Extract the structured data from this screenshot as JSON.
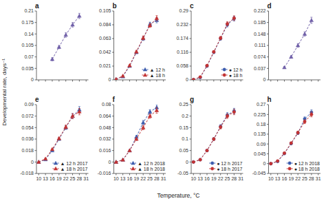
{
  "chart_data": [
    {
      "type": "line",
      "title": "a",
      "x": [
        16,
        19,
        22,
        25,
        28
      ],
      "xlim": [
        9,
        32
      ],
      "xticks": [
        10,
        13,
        16,
        19,
        22,
        25,
        28,
        31
      ],
      "ylim": [
        0,
        0.21
      ],
      "yticks": [
        0,
        0.035,
        0.07,
        0.105,
        0.14,
        0.175,
        0.21
      ],
      "tick_labels": "y",
      "series": [
        {
          "color": "#7060A8",
          "marker": "triangle",
          "line_style": "dashed",
          "values": [
            0.063,
            0.1,
            0.137,
            0.168,
            0.195
          ],
          "yerr": [
            0.005,
            0.005,
            0.007,
            0.007,
            0.008
          ]
        }
      ]
    },
    {
      "type": "line",
      "title": "b",
      "x": [
        10,
        13,
        16,
        19,
        22,
        25,
        28
      ],
      "xlim": [
        9,
        32
      ],
      "xticks": [
        10,
        13,
        16,
        19,
        22,
        25,
        28,
        31
      ],
      "ylim": [
        0,
        0.105
      ],
      "yticks": [
        0,
        0.021,
        0.042,
        0.063,
        0.084,
        0.105
      ],
      "tick_labels": "y",
      "legend": "lower right",
      "series": [
        {
          "name": "▲ 12 h",
          "color": "#3B5BAD",
          "marker": "triangle",
          "line_style": "dashed",
          "values": [
            0.001,
            0.005,
            0.021,
            0.042,
            0.063,
            0.085,
            0.091
          ],
          "yerr": [
            0.0005,
            0.001,
            0.001,
            0.002,
            0.003,
            0.003,
            0.004
          ]
        },
        {
          "name": "▲ 18 h",
          "color": "#C23232",
          "marker": "triangle",
          "line_style": "dashed",
          "values": [
            0.001,
            0.006,
            0.022,
            0.043,
            0.064,
            0.083,
            0.094
          ],
          "yerr": [
            0.0005,
            0.001,
            0.001,
            0.002,
            0.003,
            0.003,
            0.004
          ]
        }
      ]
    },
    {
      "type": "line",
      "title": "c",
      "x": [
        10,
        13,
        16,
        19,
        22,
        25,
        28
      ],
      "xlim": [
        9,
        32
      ],
      "xticks": [
        10,
        13,
        16,
        19,
        22,
        25,
        28,
        31
      ],
      "ylim": [
        0,
        0.29
      ],
      "yticks": [
        0,
        0.058,
        0.116,
        0.174,
        0.232,
        0.29
      ],
      "tick_labels": "y",
      "legend": "lower right",
      "series": [
        {
          "name": "● 12 h",
          "color": "#3B5BAD",
          "marker": "circle",
          "line_style": "dashed",
          "values": [
            0.001,
            0.01,
            0.058,
            0.116,
            0.174,
            0.232,
            0.258
          ],
          "yerr": [
            0.0005,
            0.002,
            0.003,
            0.005,
            0.007,
            0.009,
            0.01
          ]
        },
        {
          "name": "● 18 h",
          "color": "#C23232",
          "marker": "circle",
          "line_style": "dashed",
          "values": [
            0.001,
            0.012,
            0.06,
            0.118,
            0.176,
            0.236,
            0.26
          ],
          "yerr": [
            0.0005,
            0.002,
            0.003,
            0.005,
            0.007,
            0.009,
            0.01
          ]
        }
      ]
    },
    {
      "type": "line",
      "title": "d",
      "x": [
        16,
        19,
        22,
        25,
        28
      ],
      "xlim": [
        9,
        32
      ],
      "xticks": [
        10,
        13,
        16,
        19,
        22,
        25,
        28,
        31
      ],
      "ylim": [
        0,
        0.222
      ],
      "yticks": [
        0,
        0.037,
        0.074,
        0.111,
        0.148,
        0.185,
        0.222
      ],
      "tick_labels": "y",
      "series": [
        {
          "color": "#7060A8",
          "marker": "triangle",
          "line_style": "dashed",
          "values": [
            0.04,
            0.074,
            0.111,
            0.148,
            0.192
          ],
          "yerr": [
            0.003,
            0.004,
            0.006,
            0.007,
            0.01
          ]
        }
      ]
    },
    {
      "type": "line",
      "title": "e",
      "x": [
        10,
        13,
        16,
        19,
        22,
        25,
        28
      ],
      "xlim": [
        9,
        32
      ],
      "xticks": [
        10,
        13,
        16,
        19,
        22,
        25,
        28,
        31
      ],
      "ylim": [
        -0.018,
        0.09
      ],
      "yticks": [
        -0.018,
        0,
        0.018,
        0.036,
        0.054,
        0.072,
        0.09
      ],
      "legend": "lower right",
      "series": [
        {
          "name": "▲ 12 h 2017",
          "color": "#3B5BAD",
          "marker": "triangle",
          "line_style": "dashed",
          "values": [
            0.0,
            0.004,
            0.018,
            0.036,
            0.054,
            0.072,
            0.082
          ],
          "yerr": [
            0.0002,
            0.001,
            0.001,
            0.002,
            0.003,
            0.004,
            0.005
          ]
        },
        {
          "name": "▲ 18 h 2017",
          "color": "#C23232",
          "marker": "triangle",
          "line_style": "dashed",
          "values": [
            0.0,
            0.005,
            0.02,
            0.037,
            0.055,
            0.072,
            0.079
          ],
          "yerr": [
            0.0002,
            0.001,
            0.001,
            0.002,
            0.003,
            0.004,
            0.005
          ]
        }
      ]
    },
    {
      "type": "line",
      "title": "f",
      "x": [
        10,
        13,
        16,
        19,
        22,
        25,
        28
      ],
      "xlim": [
        9,
        32
      ],
      "xticks": [
        10,
        13,
        16,
        19,
        22,
        25,
        28,
        31
      ],
      "ylim": [
        -0.016,
        0.08
      ],
      "yticks": [
        -0.016,
        0,
        0.016,
        0.032,
        0.048,
        0.064,
        0.08
      ],
      "legend": "lower right",
      "series": [
        {
          "name": "▲ 12 h 2018",
          "color": "#3B5BAD",
          "marker": "triangle",
          "line_style": "dashed",
          "values": [
            0.0,
            0.003,
            0.016,
            0.035,
            0.055,
            0.07,
            0.076
          ],
          "yerr": [
            0.0002,
            0.001,
            0.001,
            0.002,
            0.003,
            0.003,
            0.004
          ]
        },
        {
          "name": "▲ 18 h 2018",
          "color": "#C23232",
          "marker": "triangle",
          "line_style": "dashed",
          "values": [
            0.0,
            0.003,
            0.016,
            0.032,
            0.048,
            0.064,
            0.072
          ],
          "yerr": [
            0.0002,
            0.001,
            0.001,
            0.002,
            0.003,
            0.003,
            0.004
          ]
        }
      ]
    },
    {
      "type": "line",
      "title": "g",
      "x": [
        10,
        13,
        16,
        19,
        22,
        25,
        28
      ],
      "xlim": [
        9,
        32
      ],
      "xticks": [
        10,
        13,
        16,
        19,
        22,
        25,
        28,
        31
      ],
      "ylim": [
        -0.05,
        0.25
      ],
      "yticks": [
        -0.05,
        0,
        0.05,
        0.1,
        0.15,
        0.2,
        0.25
      ],
      "legend": "lower right",
      "series": [
        {
          "name": "● 12 h 2017",
          "color": "#3B5BAD",
          "marker": "circle",
          "line_style": "dashed",
          "values": [
            0.0,
            0.01,
            0.05,
            0.1,
            0.155,
            0.205,
            0.222
          ],
          "yerr": [
            0.001,
            0.002,
            0.004,
            0.006,
            0.008,
            0.01,
            0.012
          ]
        },
        {
          "name": "● 18 h 2017",
          "color": "#C23232",
          "marker": "circle",
          "line_style": "dashed",
          "values": [
            0.0,
            0.01,
            0.05,
            0.1,
            0.152,
            0.2,
            0.218
          ],
          "yerr": [
            0.001,
            0.002,
            0.004,
            0.006,
            0.008,
            0.01,
            0.012
          ]
        }
      ]
    },
    {
      "type": "line",
      "title": "h",
      "x": [
        10,
        13,
        16,
        19,
        22,
        25,
        28
      ],
      "xlim": [
        9,
        32
      ],
      "xticks": [
        10,
        13,
        16,
        19,
        22,
        25,
        28,
        31
      ],
      "ylim": [
        -0.045,
        0.27
      ],
      "yticks": [
        -0.045,
        0,
        0.045,
        0.09,
        0.135,
        0.18,
        0.225,
        0.27
      ],
      "legend": "lower right",
      "series": [
        {
          "name": "● 12 h 2018",
          "color": "#3B5BAD",
          "marker": "circle",
          "line_style": "dashed",
          "values": [
            0.0,
            0.01,
            0.046,
            0.092,
            0.14,
            0.205,
            0.235
          ],
          "yerr": [
            0.001,
            0.002,
            0.003,
            0.005,
            0.007,
            0.009,
            0.011
          ]
        },
        {
          "name": "● 18 h 2018",
          "color": "#C23232",
          "marker": "circle",
          "line_style": "dashed",
          "values": [
            0.0,
            0.012,
            0.048,
            0.094,
            0.142,
            0.192,
            0.225
          ],
          "yerr": [
            0.001,
            0.002,
            0.003,
            0.005,
            0.007,
            0.009,
            0.011
          ]
        }
      ]
    }
  ],
  "xlabel": "Temperature, °C",
  "ylabel": "Developmental rate, days⁻¹"
}
